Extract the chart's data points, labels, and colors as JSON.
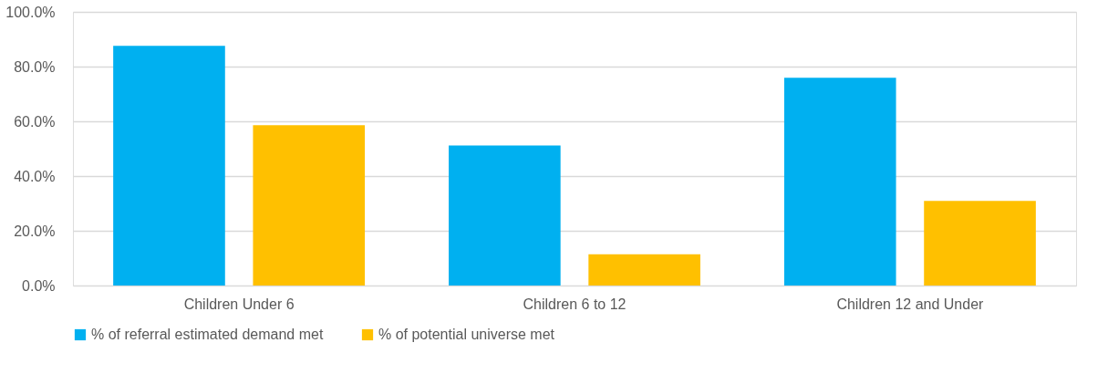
{
  "chart_data": {
    "type": "bar",
    "categories": [
      "Children Under 6",
      "Children 6 to 12",
      "Children 12 and Under"
    ],
    "series": [
      {
        "name": "% of referral estimated demand met",
        "color": "#00b0f0",
        "values": [
          87.6,
          51.2,
          75.9
        ]
      },
      {
        "name": "% of potential universe met",
        "color": "#ffc000",
        "values": [
          58.6,
          11.4,
          30.9
        ]
      }
    ],
    "ylim": [
      0,
      100
    ],
    "yticks": [
      {
        "value": 0,
        "label": "0.0%"
      },
      {
        "value": 20,
        "label": "20.0%"
      },
      {
        "value": 40,
        "label": "40.0%"
      },
      {
        "value": 60,
        "label": "60.0%"
      },
      {
        "value": 80,
        "label": "80.0%"
      },
      {
        "value": 100,
        "label": "100.0%"
      }
    ],
    "grid": "y",
    "legend": "bottom"
  }
}
